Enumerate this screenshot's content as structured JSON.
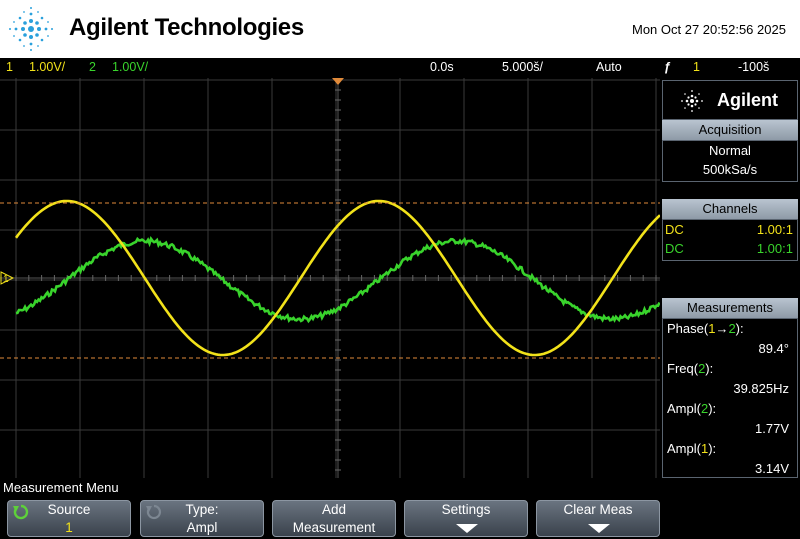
{
  "header": {
    "brand": "Agilent Technologies",
    "datetime": "Mon Oct 27 20:52:56 2025"
  },
  "status_bar": {
    "ch1_num": "1",
    "ch1_scale": "1.00V/",
    "ch2_num": "2",
    "ch2_scale": "1.00V/",
    "time_offset": "0.0s",
    "time_scale": "5.000š/",
    "trigger_mode": "Auto",
    "trigger_source": "1",
    "trigger_level": "-100š"
  },
  "colors": {
    "ch1": "#f2e21a",
    "ch2": "#39d42c",
    "cursor": "#e08a3a"
  },
  "scope": {
    "ch1_marker": "1",
    "ch2_marker": "2"
  },
  "panel": {
    "brand": "Agilent",
    "acquisition": {
      "title": "Acquisition",
      "mode": "Normal",
      "rate": "500kSa/s"
    },
    "channels": {
      "title": "Channels",
      "items": [
        {
          "coupling": "DC",
          "probe": "1.00:1"
        },
        {
          "coupling": "DC",
          "probe": "1.00:1"
        }
      ]
    },
    "measurements": {
      "title": "Measurements",
      "items": [
        {
          "label_pre": "Phase(",
          "label_a": "1",
          "label_arrow": "→",
          "label_b": "2",
          "label_post": "):",
          "value": "89.4°"
        },
        {
          "label_pre": "Freq(",
          "label_a": "2",
          "label_post": "):",
          "value": "39.825Hz"
        },
        {
          "label_pre": "Ampl(",
          "label_a": "2",
          "label_post": "):",
          "value": "1.77V"
        },
        {
          "label_pre": "Ampl(",
          "label_a": "1",
          "label_post": "):",
          "value": "3.14V"
        }
      ]
    }
  },
  "softkeys": {
    "menu_title": "Measurement Menu",
    "source_label": "Source",
    "source_value": "1",
    "type_label": "Type:",
    "type_value": "Ampl",
    "add_line1": "Add",
    "add_line2": "Measurement",
    "settings_label": "Settings",
    "clear_label": "Clear Meas"
  }
}
